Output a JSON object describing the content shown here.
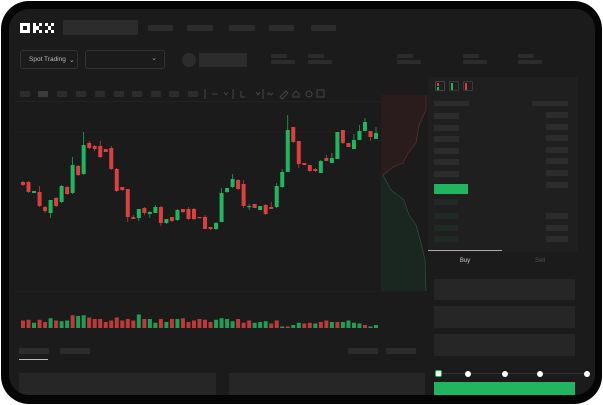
{
  "header": {
    "logo": "OKX"
  },
  "toolbar": {
    "market_dropdown": "Spot Trading",
    "pair_dropdown": ""
  },
  "trade": {
    "tabs": [
      "Buy",
      "Sell"
    ],
    "active_tab": "Buy",
    "slider_percent": 0
  },
  "colors": {
    "up": "#22b560",
    "down": "#d8413f",
    "background": "#1b1b1b",
    "accent": "#22b560"
  },
  "icons": [
    "okx-logo",
    "chevron-down-icon",
    "draw-line-icon",
    "ruler-icon",
    "camera-icon",
    "settings-icon",
    "fullscreen-icon",
    "orderbook-both-icon",
    "orderbook-bids-icon",
    "orderbook-asks-icon"
  ],
  "chart_data": {
    "type": "candlestick",
    "candles": [
      [
        53,
        50,
        54,
        49
      ],
      [
        53,
        43,
        54,
        42
      ],
      [
        42,
        44,
        44,
        42
      ],
      [
        43,
        29,
        49,
        28
      ],
      [
        28,
        24,
        29,
        22
      ],
      [
        22,
        35,
        35,
        17
      ],
      [
        37,
        29,
        38,
        28
      ],
      [
        33,
        49,
        50,
        32
      ],
      [
        48,
        41,
        49,
        40
      ],
      [
        42,
        70,
        78,
        41
      ],
      [
        69,
        60,
        70,
        59
      ],
      [
        61,
        90,
        103,
        60
      ],
      [
        92,
        87,
        94,
        86
      ],
      [
        89,
        86,
        90,
        84
      ],
      [
        89,
        78,
        94,
        77
      ],
      [
        86,
        83,
        86,
        83
      ],
      [
        87,
        66,
        89,
        65
      ],
      [
        66,
        44,
        67,
        43
      ],
      [
        48,
        45,
        48,
        44
      ],
      [
        46,
        18,
        46,
        13
      ],
      [
        18,
        16,
        20,
        16
      ],
      [
        17,
        26,
        26,
        14
      ],
      [
        27,
        22,
        28,
        20
      ],
      [
        21,
        23,
        24,
        17
      ],
      [
        22,
        28,
        30,
        22
      ],
      [
        28,
        12,
        29,
        9
      ],
      [
        12,
        16,
        16,
        11
      ],
      [
        18,
        14,
        18,
        13
      ],
      [
        15,
        25,
        26,
        14
      ],
      [
        26,
        23,
        26,
        22
      ],
      [
        26,
        16,
        28,
        15
      ],
      [
        26,
        16,
        27,
        15
      ],
      [
        18,
        17,
        18,
        17
      ],
      [
        18,
        6,
        20,
        6
      ],
      [
        8,
        6,
        8,
        5
      ],
      [
        6,
        12,
        13,
        5
      ],
      [
        13,
        42,
        47,
        13
      ],
      [
        43,
        47,
        47,
        42
      ],
      [
        48,
        56,
        61,
        47
      ],
      [
        55,
        46,
        56,
        45
      ],
      [
        51,
        29,
        55,
        27
      ],
      [
        28,
        29,
        31,
        25
      ],
      [
        31,
        27,
        31,
        27
      ],
      [
        25,
        29,
        29,
        25
      ],
      [
        30,
        21,
        31,
        20
      ],
      [
        28,
        26,
        33,
        26
      ],
      [
        28,
        49,
        52,
        27
      ],
      [
        48,
        63,
        66,
        47
      ],
      [
        63,
        105,
        120,
        63
      ],
      [
        108,
        93,
        108,
        92
      ],
      [
        94,
        71,
        94,
        67
      ],
      [
        72,
        70,
        72,
        70
      ],
      [
        70,
        64,
        70,
        63
      ],
      [
        66,
        64,
        67,
        63
      ],
      [
        62,
        74,
        75,
        62
      ],
      [
        77,
        74,
        80,
        74
      ],
      [
        72,
        77,
        82,
        72
      ],
      [
        76,
        103,
        103,
        76
      ],
      [
        105,
        92,
        105,
        91
      ],
      [
        92,
        88,
        92,
        88
      ],
      [
        86,
        95,
        101,
        86
      ],
      [
        95,
        104,
        110,
        95
      ],
      [
        104,
        113,
        117,
        104
      ],
      [
        104,
        98,
        104,
        94
      ],
      [
        96,
        102,
        108,
        96
      ]
    ],
    "volumes": [
      10,
      11,
      7,
      11,
      8,
      13,
      10,
      9,
      10,
      17,
      16,
      17,
      14,
      12,
      12,
      8,
      10,
      14,
      10,
      12,
      10,
      18,
      12,
      12,
      7,
      12,
      8,
      12,
      12,
      13,
      8,
      10,
      12,
      11,
      8,
      11,
      13,
      12,
      9,
      12,
      7,
      10,
      7,
      8,
      9,
      6,
      10,
      2,
      2,
      4,
      7,
      6,
      7,
      6,
      8,
      10,
      8,
      8,
      8,
      10,
      7,
      6,
      4,
      2,
      4
    ],
    "volume_colors": "rrgrrgrggrggrrrrrrrrrgrggrgrgrrrrrrggggrrrgggrrgrggrrgrrgrggggrgg",
    "reference_line": 103
  }
}
